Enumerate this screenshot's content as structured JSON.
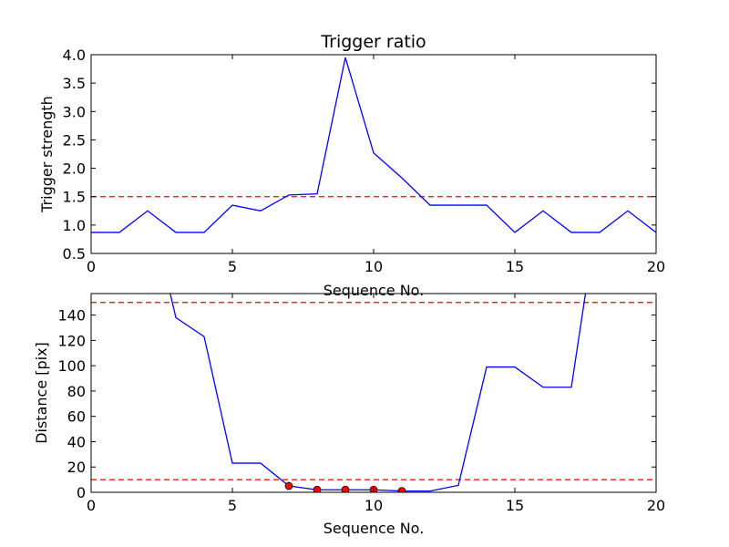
{
  "colors": {
    "line": "#0000ff",
    "reference": "#ff0000",
    "marker": "#ff0000"
  },
  "chart_data": [
    {
      "type": "line",
      "title": "Trigger ratio",
      "xlabel": "Sequence No.",
      "ylabel": "Trigger strength",
      "xlim": [
        0,
        20
      ],
      "ylim": [
        0.5,
        4.0
      ],
      "xticks": [
        0,
        5,
        10,
        15,
        20
      ],
      "xtick_labels": [
        "0",
        "5",
        "10",
        "15",
        "20"
      ],
      "yticks": [
        0.5,
        1.0,
        1.5,
        2.0,
        2.5,
        3.0,
        3.5,
        4.0
      ],
      "ytick_labels": [
        "0.5",
        "1.0",
        "1.5",
        "2.0",
        "2.5",
        "3.0",
        "3.5",
        "4.0"
      ],
      "grid": false,
      "series": [
        {
          "style": "solid",
          "x": [
            0,
            1,
            2,
            3,
            4,
            5,
            6,
            7,
            8,
            9,
            10,
            11,
            12,
            13,
            14,
            15,
            16,
            17,
            18,
            19,
            20
          ],
          "values": [
            0.87,
            0.87,
            1.25,
            0.87,
            0.87,
            1.35,
            1.25,
            1.53,
            1.55,
            3.95,
            2.27,
            1.83,
            1.35,
            1.35,
            1.35,
            0.87,
            1.25,
            0.87,
            0.87,
            1.25,
            0.87
          ]
        }
      ],
      "reference_lines": [
        {
          "axis": "y",
          "value": 1.5,
          "style": "dashed"
        }
      ],
      "markers": []
    },
    {
      "type": "line",
      "title": "",
      "xlabel": "Sequence No.",
      "ylabel": "Distance [pix]",
      "xlim": [
        0,
        20
      ],
      "ylim": [
        0,
        157
      ],
      "xticks": [
        0,
        5,
        10,
        15,
        20
      ],
      "xtick_labels": [
        "0",
        "5",
        "10",
        "15",
        "20"
      ],
      "yticks": [
        0,
        20,
        40,
        60,
        80,
        100,
        120,
        140
      ],
      "ytick_labels": [
        "0",
        "20",
        "40",
        "60",
        "80",
        "100",
        "120",
        "140"
      ],
      "grid": false,
      "series": [
        {
          "style": "solid",
          "x": [
            2.8,
            3,
            4,
            5,
            6,
            7,
            8,
            9,
            10,
            11,
            12,
            13,
            14,
            15,
            16,
            17,
            17.5
          ],
          "values": [
            157,
            138,
            123,
            23,
            23,
            5,
            2,
            2,
            2,
            1,
            1,
            5.5,
            99,
            99,
            83,
            83,
            157
          ]
        }
      ],
      "reference_lines": [
        {
          "axis": "y",
          "value": 150,
          "style": "dashed"
        },
        {
          "axis": "y",
          "value": 10,
          "style": "dashed"
        }
      ],
      "markers": [
        {
          "x": 7,
          "y": 5
        },
        {
          "x": 8,
          "y": 2
        },
        {
          "x": 9,
          "y": 2
        },
        {
          "x": 10,
          "y": 2
        },
        {
          "x": 11,
          "y": 1
        }
      ]
    }
  ]
}
